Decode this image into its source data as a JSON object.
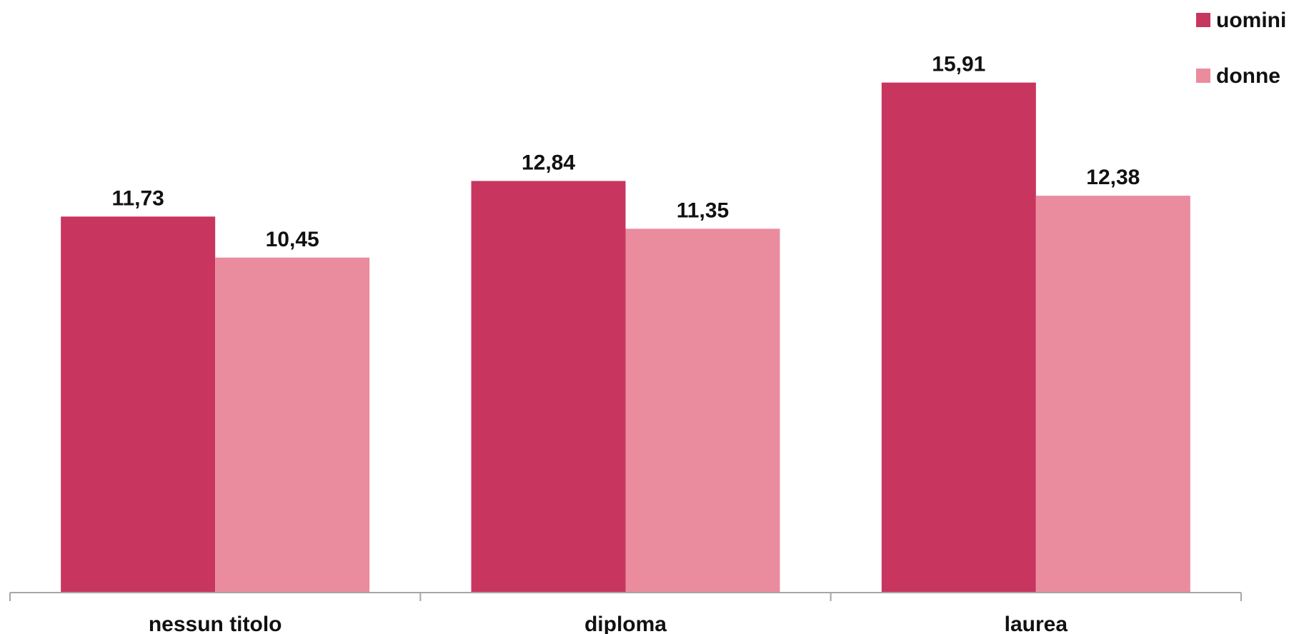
{
  "chart_data": {
    "type": "bar",
    "categories": [
      "nessun titolo",
      "diploma",
      "laurea"
    ],
    "series": [
      {
        "name": "uomini",
        "values": [
          11.73,
          12.84,
          15.91
        ],
        "labels": [
          "11,73",
          "12,84",
          "15,91"
        ],
        "color": "#c8355f"
      },
      {
        "name": "donne",
        "values": [
          10.45,
          11.35,
          12.38
        ],
        "labels": [
          "10,45",
          "11,35",
          "12,38"
        ],
        "color": "#ea8c9e"
      }
    ],
    "title": "",
    "xlabel": "",
    "ylabel": "",
    "ylim": [
      0,
      17
    ],
    "grid": false,
    "legend": "top-right",
    "axis_color": "#a6a6a6"
  }
}
